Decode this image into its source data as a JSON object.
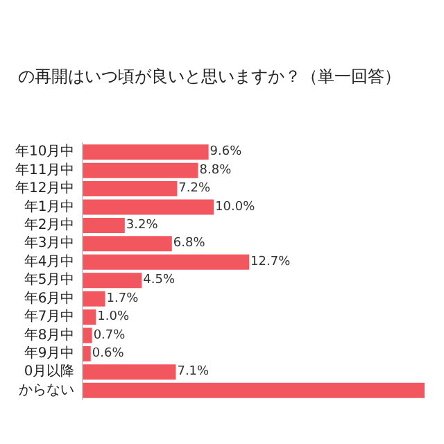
{
  "chart_data": {
    "type": "bar",
    "orientation": "horizontal",
    "title": "の再開はいつ頃が良いと思いますか？（単一回答）",
    "categories": [
      "年10月中",
      "年11月中",
      "年12月中",
      "年1月中",
      "年2月中",
      "年3月中",
      "年4月中",
      "年5月中",
      "年6月中",
      "年7月中",
      "年8月中",
      "年9月中",
      "0月以降",
      "からない"
    ],
    "values": [
      9.6,
      8.8,
      7.2,
      10.0,
      3.2,
      6.8,
      12.7,
      4.5,
      1.7,
      1.0,
      0.7,
      0.6,
      7.1,
      26.1
    ],
    "value_labels": [
      "9.6%",
      "8.8%",
      "7.2%",
      "10.0%",
      "3.2%",
      "6.8%",
      "12.7%",
      "4.5%",
      "1.7%",
      "1.0%",
      "0.7%",
      "0.6%",
      "7.1%",
      null
    ],
    "color": "#f2575f"
  }
}
